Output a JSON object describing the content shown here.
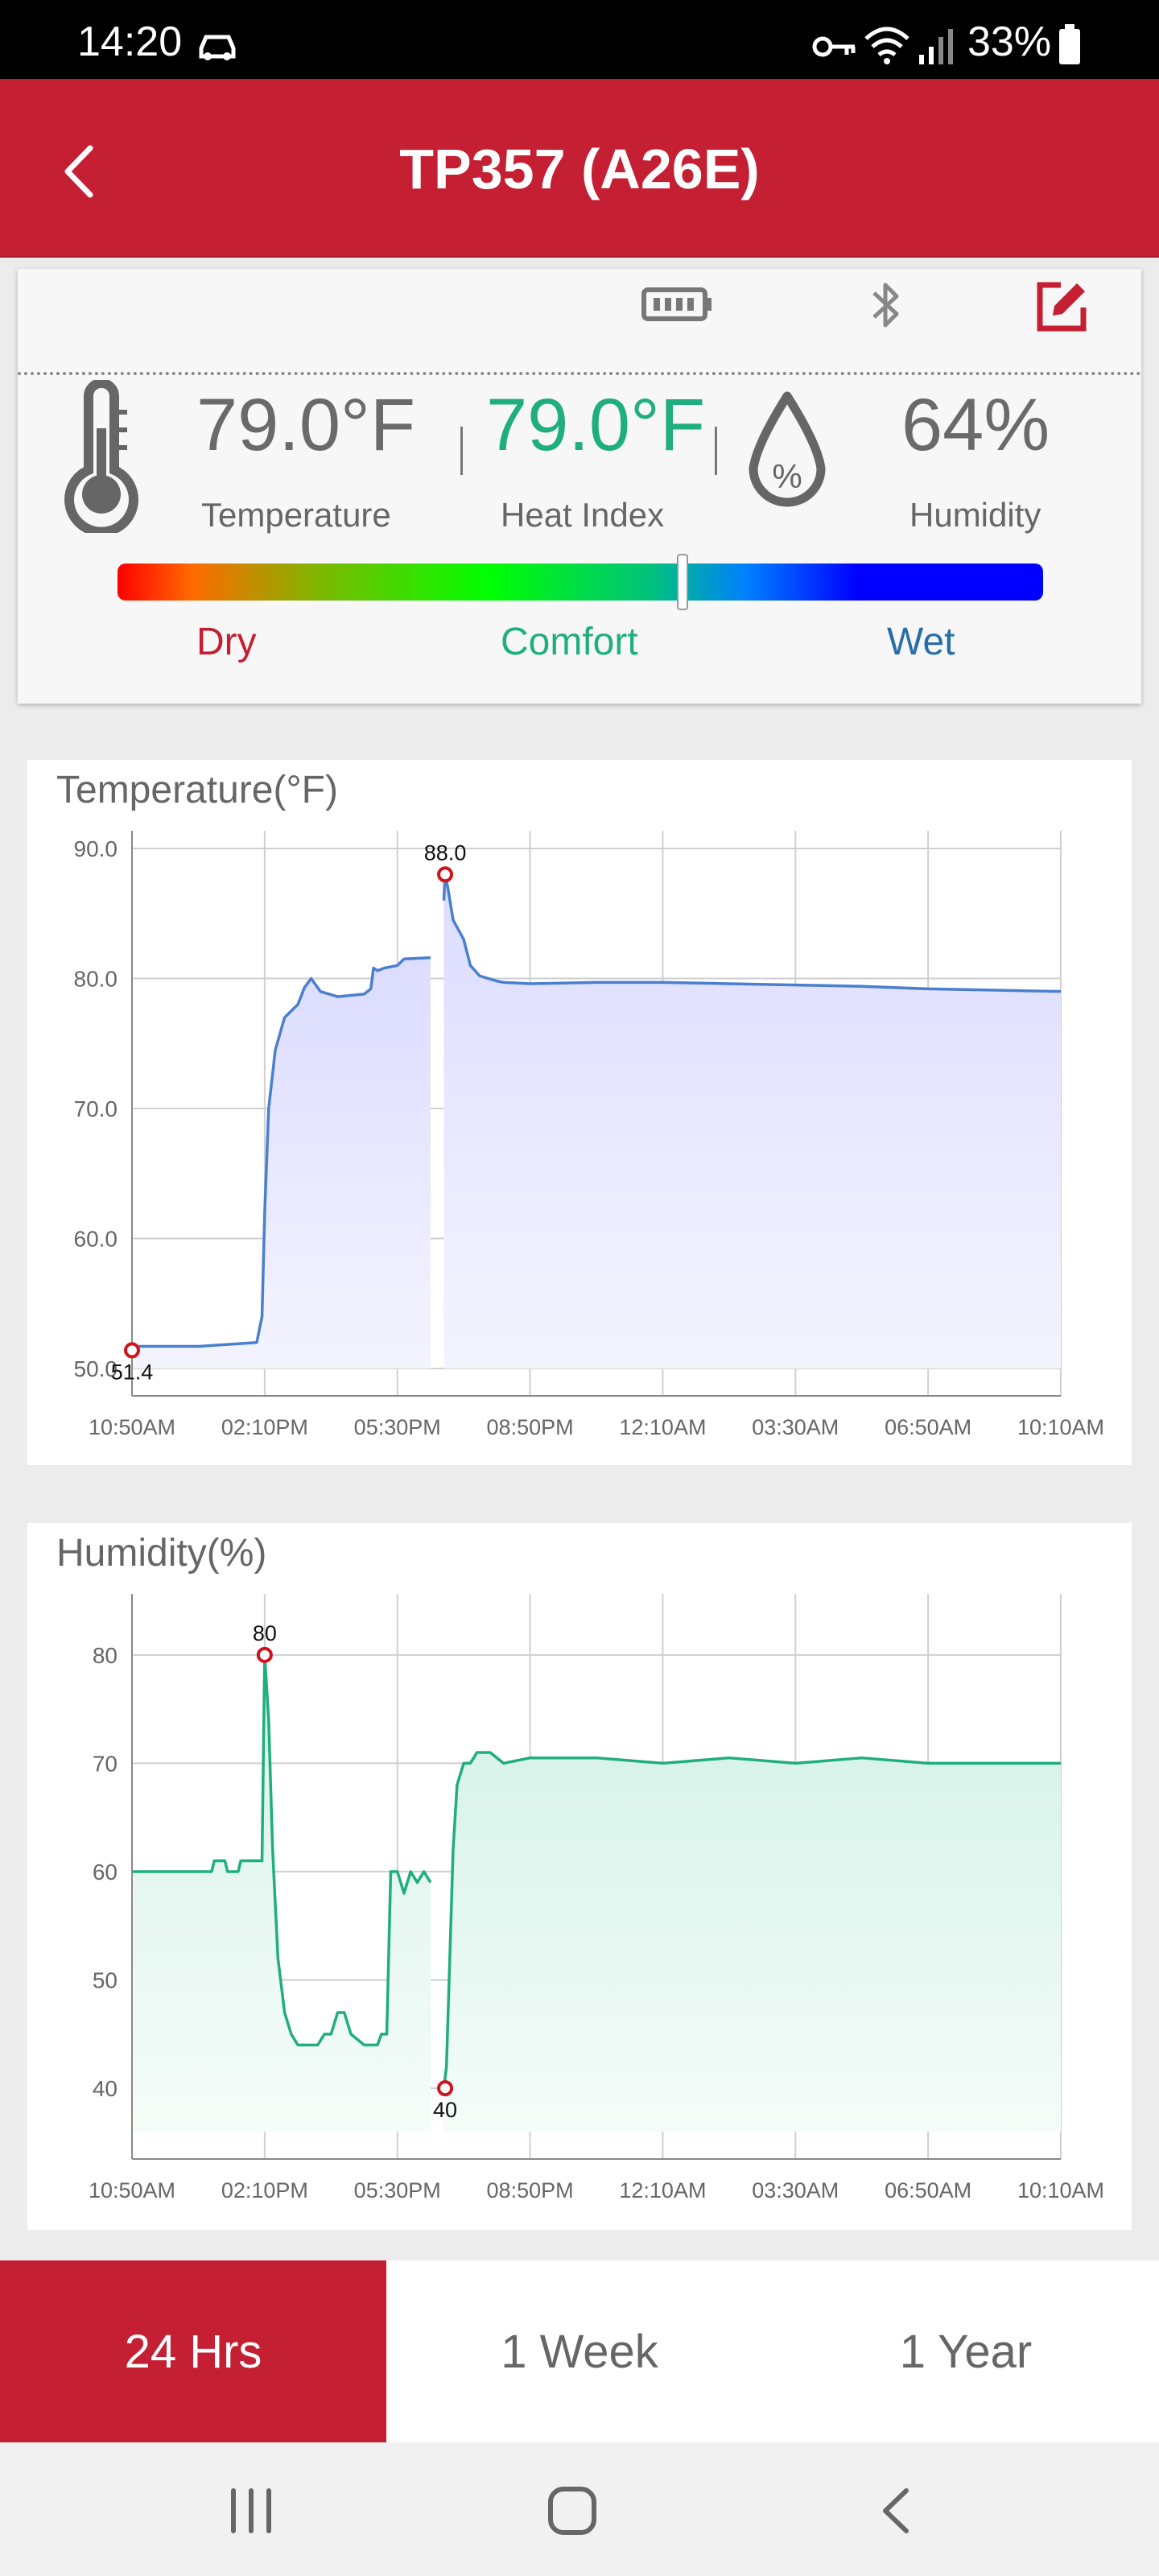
{
  "status_bar": {
    "time": "14:20",
    "battery": "33%"
  },
  "header": {
    "title": "TP357 (A26E)"
  },
  "summary": {
    "temperature_value": "79.0°F",
    "temperature_label": "Temperature",
    "heat_index_value": "79.0°F",
    "heat_index_label": "Heat Index",
    "humidity_value": "64%",
    "humidity_label": "Humidity",
    "humidity_icon_symbol": "%",
    "comfort_level": 0.61,
    "zones": {
      "dry": "Dry",
      "comfort": "Comfort",
      "wet": "Wet"
    },
    "colors": {
      "dry": "#c41f32",
      "comfort": "#1fae7e",
      "wet": "#2a6ea8"
    }
  },
  "icons": {
    "status": [
      "car-icon",
      "key-icon",
      "wifi-icon",
      "signal-icon",
      "battery-icon"
    ],
    "toolbar": [
      "battery-icon",
      "bluetooth-icon",
      "edit-icon"
    ],
    "nav": [
      "recent-apps-icon",
      "home-icon",
      "back-icon"
    ]
  },
  "chart_data": [
    {
      "type": "area",
      "title": "Temperature(°F)",
      "color": "#4a7fd0",
      "ylim": [
        50,
        90
      ],
      "y_ticks": [
        90,
        80,
        70,
        60,
        50
      ],
      "y_tick_labels": [
        "90.0",
        "80.0",
        "70.0",
        "60.0",
        "50.0"
      ],
      "x_tick_labels": [
        "10:50AM",
        "02:10PM",
        "05:30PM",
        "08:50PM",
        "12:10AM",
        "03:30AM",
        "06:50AM",
        "10:10AM"
      ],
      "x_range": [
        0,
        7
      ],
      "grid": true,
      "max_label": "88.0",
      "min_label": "51.4",
      "series": [
        {
          "segments": [
            [
              [
                0,
                51.4
              ],
              [
                0.05,
                51.7
              ],
              [
                0.5,
                51.7
              ],
              [
                0.94,
                52.0
              ],
              [
                0.98,
                54
              ],
              [
                1.0,
                62
              ],
              [
                1.03,
                70
              ],
              [
                1.08,
                74.5
              ],
              [
                1.15,
                77
              ],
              [
                1.25,
                78
              ],
              [
                1.3,
                79.3
              ],
              [
                1.35,
                80
              ],
              [
                1.42,
                79
              ],
              [
                1.55,
                78.6
              ],
              [
                1.75,
                78.8
              ],
              [
                1.8,
                79.2
              ],
              [
                1.82,
                80.8
              ],
              [
                1.85,
                80.6
              ],
              [
                1.9,
                80.8
              ],
              [
                2.0,
                81.0
              ],
              [
                2.05,
                81.5
              ],
              [
                2.25,
                81.6
              ]
            ],
            [
              [
                2.35,
                86
              ],
              [
                2.36,
                88.0
              ],
              [
                2.38,
                87
              ],
              [
                2.42,
                84.5
              ],
              [
                2.5,
                83
              ],
              [
                2.55,
                81
              ],
              [
                2.62,
                80.2
              ],
              [
                2.75,
                79.8
              ],
              [
                2.8,
                79.7
              ],
              [
                3.0,
                79.6
              ],
              [
                3.5,
                79.7
              ],
              [
                4.0,
                79.7
              ],
              [
                4.5,
                79.6
              ],
              [
                5.0,
                79.5
              ],
              [
                5.5,
                79.4
              ],
              [
                6.0,
                79.2
              ],
              [
                6.5,
                79.1
              ],
              [
                7.0,
                79.0
              ]
            ]
          ]
        }
      ],
      "markers": [
        {
          "x": 0,
          "y": 51.4,
          "label": "51.4"
        },
        {
          "x": 2.36,
          "y": 88.0,
          "label": "88.0"
        }
      ]
    },
    {
      "type": "area",
      "title": "Humidity(%)",
      "color": "#1fae7e",
      "ylim": [
        36,
        84
      ],
      "y_ticks": [
        80,
        70,
        60,
        50,
        40
      ],
      "y_tick_labels": [
        "80",
        "70",
        "60",
        "50",
        "40"
      ],
      "x_tick_labels": [
        "10:50AM",
        "02:10PM",
        "05:30PM",
        "08:50PM",
        "12:10AM",
        "03:30AM",
        "06:50AM",
        "10:10AM"
      ],
      "x_range": [
        0,
        7
      ],
      "grid": true,
      "max_label": "80",
      "min_label": "40",
      "series": [
        {
          "segments": [
            [
              [
                0,
                60
              ],
              [
                0.6,
                60
              ],
              [
                0.62,
                61
              ],
              [
                0.7,
                61
              ],
              [
                0.72,
                60
              ],
              [
                0.8,
                60
              ],
              [
                0.82,
                61
              ],
              [
                0.98,
                61
              ],
              [
                1.0,
                80
              ],
              [
                1.03,
                74
              ],
              [
                1.06,
                62
              ],
              [
                1.1,
                52
              ],
              [
                1.15,
                47
              ],
              [
                1.2,
                45
              ],
              [
                1.25,
                44
              ],
              [
                1.4,
                44
              ],
              [
                1.45,
                45
              ],
              [
                1.5,
                45
              ],
              [
                1.55,
                47
              ],
              [
                1.6,
                47
              ],
              [
                1.65,
                45
              ],
              [
                1.75,
                44
              ],
              [
                1.85,
                44
              ],
              [
                1.88,
                45
              ],
              [
                1.92,
                45
              ],
              [
                1.95,
                60
              ],
              [
                2.0,
                60
              ],
              [
                2.05,
                58
              ],
              [
                2.1,
                60
              ],
              [
                2.15,
                59
              ],
              [
                2.2,
                60
              ],
              [
                2.25,
                59
              ]
            ],
            [
              [
                2.35,
                40
              ],
              [
                2.37,
                42
              ],
              [
                2.42,
                62
              ],
              [
                2.45,
                68
              ],
              [
                2.5,
                70
              ],
              [
                2.55,
                70
              ],
              [
                2.6,
                71
              ],
              [
                2.7,
                71
              ],
              [
                2.8,
                70
              ],
              [
                3.0,
                70.5
              ],
              [
                3.5,
                70.5
              ],
              [
                4.0,
                70
              ],
              [
                4.5,
                70.5
              ],
              [
                5.0,
                70
              ],
              [
                5.5,
                70.5
              ],
              [
                6.0,
                70
              ],
              [
                6.5,
                70
              ],
              [
                7.0,
                70
              ]
            ]
          ]
        }
      ],
      "markers": [
        {
          "x": 1.0,
          "y": 80,
          "label": "80"
        },
        {
          "x": 2.36,
          "y": 40,
          "label": "40"
        }
      ]
    }
  ],
  "range_tabs": [
    {
      "label": "24 Hrs",
      "active": true
    },
    {
      "label": "1 Week",
      "active": false
    },
    {
      "label": "1 Year",
      "active": false
    }
  ]
}
